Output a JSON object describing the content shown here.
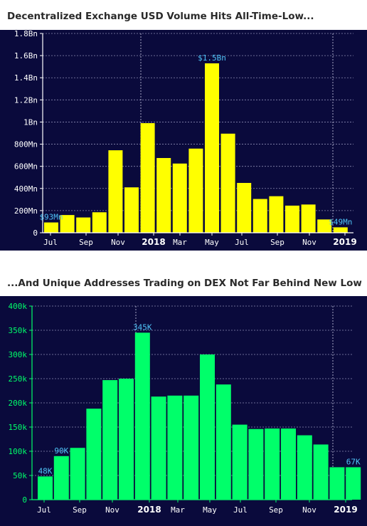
{
  "charts": [
    {
      "title": "Decentralized Exchange USD Volume Hits All-Time-Low...",
      "background": "#0a0a3c",
      "bar_color": "#ffff00",
      "label_color": "#4fc3f7",
      "axis_color": "#ffffff",
      "y_ticks": [
        "0",
        "200Mn",
        "400Mn",
        "600Mn",
        "800Mn",
        "1Bn",
        "1.2Bn",
        "1.4Bn",
        "1.6Bn",
        "1.8Bn"
      ],
      "x_ticks": [
        {
          "label": "Jul",
          "bold": false
        },
        {
          "label": "Sep",
          "bold": false
        },
        {
          "label": "Nov",
          "bold": false
        },
        {
          "label": "2018",
          "bold": true
        },
        {
          "label": "Mar",
          "bold": false
        },
        {
          "label": "May",
          "bold": false
        },
        {
          "label": "Jul",
          "bold": false
        },
        {
          "label": "Sep",
          "bold": false
        },
        {
          "label": "Nov",
          "bold": false
        },
        {
          "label": "2019",
          "bold": true
        }
      ],
      "annotations": [
        {
          "index": 0,
          "text": "$93Mn"
        },
        {
          "index": 10,
          "text": "$1.5Bn"
        },
        {
          "index": 18,
          "text": "$49Mn"
        }
      ]
    },
    {
      "title": "...And Unique Addresses Trading on DEX Not Far Behind New Low",
      "background": "#0a0a3c",
      "bar_color": "#00ff6a",
      "label_color": "#4fc3f7",
      "axis_color": "#00ff6a",
      "y_ticks": [
        "0",
        "50k",
        "100k",
        "150k",
        "200k",
        "250k",
        "300k",
        "350k",
        "400k"
      ],
      "x_ticks": [
        {
          "label": "Jul",
          "bold": false
        },
        {
          "label": "Sep",
          "bold": false
        },
        {
          "label": "Nov",
          "bold": false
        },
        {
          "label": "2018",
          "bold": true
        },
        {
          "label": "Mar",
          "bold": false
        },
        {
          "label": "May",
          "bold": false
        },
        {
          "label": "Jul",
          "bold": false
        },
        {
          "label": "Sep",
          "bold": false
        },
        {
          "label": "Nov",
          "bold": false
        },
        {
          "label": "2019",
          "bold": true
        }
      ],
      "annotations": [
        {
          "index": 0,
          "text": "48K"
        },
        {
          "index": 1,
          "text": "90K"
        },
        {
          "index": 6,
          "text": "345K"
        },
        {
          "index": 19,
          "text": "67K"
        }
      ]
    }
  ],
  "chart_data": [
    {
      "type": "bar",
      "title": "Decentralized Exchange USD Volume Hits All-Time-Low...",
      "xlabel": "",
      "ylabel": "",
      "y_unit": "USD",
      "ylim": [
        0,
        1800000000
      ],
      "grid": true,
      "categories": [
        "Jul 2017",
        "Aug 2017",
        "Sep 2017",
        "Oct 2017",
        "Nov 2017",
        "Dec 2017",
        "Jan 2018",
        "Feb 2018",
        "Mar 2018",
        "Apr 2018",
        "May 2018",
        "Jun 2018",
        "Jul 2018",
        "Aug 2018",
        "Sep 2018",
        "Oct 2018",
        "Nov 2018",
        "Dec 2018",
        "Jan 2019"
      ],
      "values": [
        93000000,
        160000000,
        138000000,
        185000000,
        745000000,
        410000000,
        990000000,
        675000000,
        625000000,
        760000000,
        1530000000,
        895000000,
        450000000,
        305000000,
        330000000,
        245000000,
        255000000,
        120000000,
        49000000
      ]
    },
    {
      "type": "bar",
      "title": "...And Unique Addresses Trading on DEX Not Far Behind New Low",
      "xlabel": "",
      "ylabel": "",
      "ylim": [
        0,
        400000
      ],
      "grid": true,
      "categories": [
        "Jul 2017",
        "Aug 2017",
        "Sep 2017",
        "Oct 2017",
        "Nov 2017",
        "Dec 2017",
        "Jan 2018",
        "Feb 2018",
        "Mar 2018",
        "Apr 2018",
        "May 2018",
        "Jun 2018",
        "Jul 2018",
        "Aug 2018",
        "Sep 2018",
        "Oct 2018",
        "Nov 2018",
        "Dec 2018",
        "Jan 2019",
        "Feb 2019"
      ],
      "values": [
        48000,
        90000,
        107000,
        188000,
        247000,
        250000,
        345000,
        213000,
        215000,
        215000,
        300000,
        238000,
        155000,
        146000,
        147000,
        147000,
        133000,
        114000,
        67000,
        67000
      ]
    }
  ]
}
